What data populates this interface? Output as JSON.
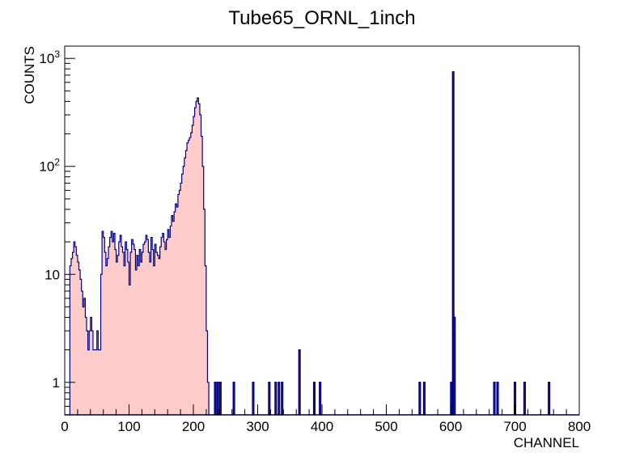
{
  "chart_data": {
    "type": "bar",
    "title": "Tube65_ORNL_1inch",
    "xlabel": "CHANNEL",
    "ylabel": "COUNTS",
    "xlim": [
      0,
      800
    ],
    "ylim": [
      0.5,
      1300
    ],
    "yscale": "log",
    "grid": false,
    "legend": "none",
    "colors": {
      "fill": "#ffcccc",
      "line": "#000080",
      "axis": "#000000"
    },
    "x_ticks": [
      {
        "value": 0,
        "label": "0"
      },
      {
        "value": 100,
        "label": "100"
      },
      {
        "value": 200,
        "label": "200"
      },
      {
        "value": 300,
        "label": "300"
      },
      {
        "value": 400,
        "label": "400"
      },
      {
        "value": 500,
        "label": "500"
      },
      {
        "value": 600,
        "label": "600"
      },
      {
        "value": 700,
        "label": "700"
      },
      {
        "value": 800,
        "label": "800"
      }
    ],
    "y_ticks": [
      {
        "value": 1,
        "base": "1",
        "exp": ""
      },
      {
        "value": 10,
        "base": "10",
        "exp": ""
      },
      {
        "value": 100,
        "base": "10",
        "exp": "2"
      },
      {
        "value": 1000,
        "base": "10",
        "exp": "3"
      }
    ],
    "continuous_segments": [
      {
        "x_start": 8,
        "bin_width": 2,
        "values": [
          12,
          14,
          16,
          20,
          18,
          15,
          13,
          11,
          9,
          7,
          5,
          6,
          4,
          3,
          2,
          3,
          4,
          3,
          2,
          2,
          2,
          3,
          2,
          2,
          10,
          25,
          22,
          16,
          12,
          14,
          18,
          22,
          25,
          20,
          24,
          17,
          13,
          15,
          20,
          23,
          18,
          16,
          12,
          20,
          17,
          13,
          8,
          16,
          21,
          19,
          17,
          11,
          15,
          12,
          17,
          13,
          16,
          19,
          20,
          23,
          21,
          16,
          13,
          22,
          17,
          12,
          19,
          16,
          15,
          14,
          18,
          22,
          24,
          20,
          17,
          21,
          26,
          22,
          28,
          35,
          31,
          38,
          45,
          42,
          55,
          60,
          70,
          85,
          100,
          120,
          140,
          165,
          175,
          185,
          205,
          240,
          290,
          350,
          400,
          430,
          380,
          300,
          190,
          100,
          40,
          12,
          3,
          1,
          0
        ]
      }
    ],
    "spikes": [
      {
        "x": 234,
        "count": 1
      },
      {
        "x": 238,
        "count": 1
      },
      {
        "x": 242,
        "count": 1
      },
      {
        "x": 263,
        "count": 1
      },
      {
        "x": 293,
        "count": 1
      },
      {
        "x": 318,
        "count": 1
      },
      {
        "x": 328,
        "count": 1
      },
      {
        "x": 333,
        "count": 1
      },
      {
        "x": 338,
        "count": 1
      },
      {
        "x": 365,
        "count": 2
      },
      {
        "x": 388,
        "count": 1
      },
      {
        "x": 397,
        "count": 1
      },
      {
        "x": 552,
        "count": 1
      },
      {
        "x": 559,
        "count": 1
      },
      {
        "x": 601,
        "count": 1
      },
      {
        "x": 604,
        "count": 750
      },
      {
        "x": 606,
        "count": 4
      },
      {
        "x": 668,
        "count": 1
      },
      {
        "x": 673,
        "count": 1
      },
      {
        "x": 700,
        "count": 1
      },
      {
        "x": 715,
        "count": 1
      },
      {
        "x": 753,
        "count": 1
      }
    ]
  }
}
